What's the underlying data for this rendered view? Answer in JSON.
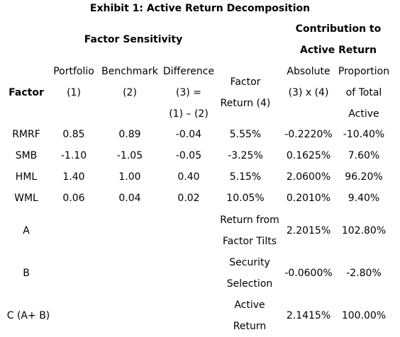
{
  "title": "Exhibit 1: Active Return Decomposition",
  "groups": {
    "factor_sensitivity": "Factor Sensitivity",
    "contribution": [
      "Contribution to",
      "Active Return"
    ]
  },
  "columns": [
    [
      "Factor"
    ],
    [
      "Portfolio",
      "(1)"
    ],
    [
      "Benchmark",
      "(2)"
    ],
    [
      "Difference",
      "(3) =",
      "(1) – (2)"
    ],
    [
      "Factor",
      "Return (4)"
    ],
    [
      "Absolute",
      "(3) x (4)"
    ],
    [
      "Proportion",
      "of Total",
      "Active"
    ]
  ],
  "rows": [
    [
      "RMRF",
      "0.85",
      "0.89",
      "-0.04",
      "5.55%",
      "-0.2220%",
      "-10.40%"
    ],
    [
      "SMB",
      "-1.10",
      "-1.05",
      "-0.05",
      "-3.25%",
      "0.1625%",
      "7.60%"
    ],
    [
      "HML",
      "1.40",
      "1.00",
      "0.40",
      "5.15%",
      "2.0600%",
      "96.20%"
    ],
    [
      "WML",
      "0.06",
      "0.04",
      "0.02",
      "10.05%",
      "0.2010%",
      "9.40%"
    ]
  ],
  "summary": [
    {
      "label": "A",
      "description": [
        "Return from",
        "Factor Tilts"
      ],
      "absolute": "2.2015%",
      "proportion": "102.80%"
    },
    {
      "label": "B",
      "description": [
        "Security",
        "Selection"
      ],
      "absolute": "-0.0600%",
      "proportion": "-2.80%"
    },
    {
      "label": "C (A+ B)",
      "description": [
        "Active",
        "Return"
      ],
      "absolute": "2.1415%",
      "proportion": "100.00%"
    }
  ]
}
